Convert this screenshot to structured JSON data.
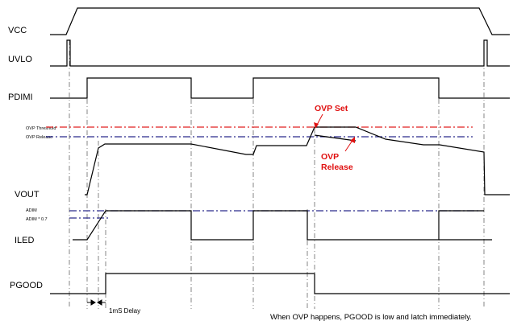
{
  "diagram": {
    "signals": {
      "vcc": "VCC",
      "uvlo": "UVLO",
      "pdimi": "PDIMI",
      "vout": "VOUT",
      "iled": "ILED",
      "pgood": "PGOOD"
    },
    "thresholds": {
      "ovp_threshold": "OVP Threshold",
      "ovp_release": "OVP Release",
      "adim": "ADIM",
      "adim_07": "ADIM * 0.7"
    },
    "annotations": {
      "ovp_set": "OVP Set",
      "ovp_release_line1": "OVP",
      "ovp_release_line2": "Release",
      "delay": "1mS Delay",
      "note": "When OVP happens, PGOOD is low and latch immediately."
    },
    "colors": {
      "signal": "#000000",
      "ovp_threshold_line": "#e02020",
      "ovp_release_line": "#2a2a8c",
      "annotation": "#e01010",
      "guide": "#666666"
    }
  }
}
